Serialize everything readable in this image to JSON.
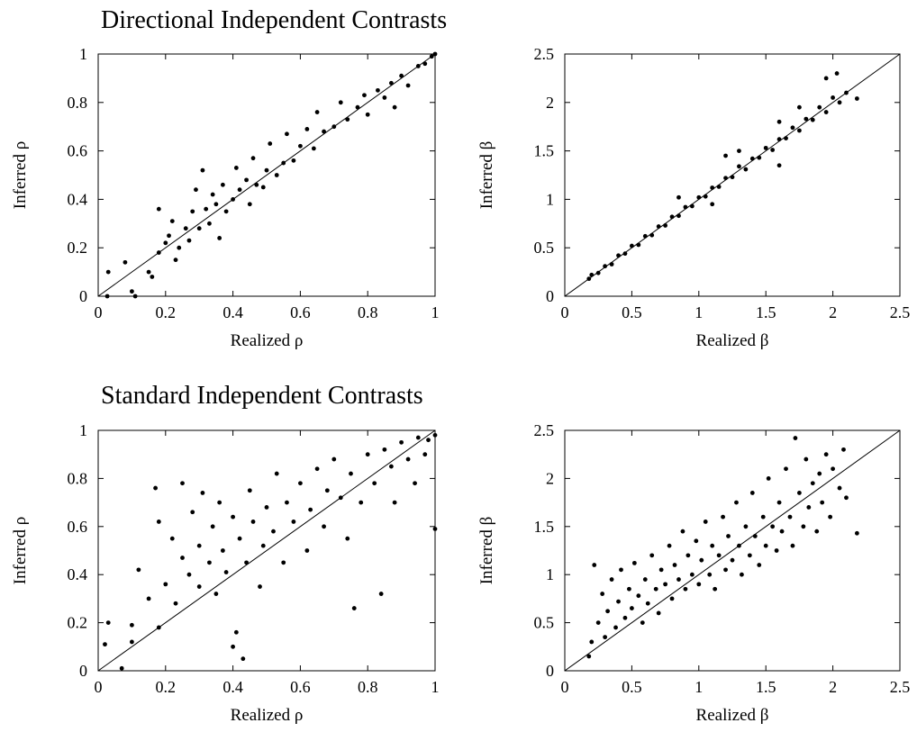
{
  "sections": [
    {
      "title": "Directional Independent Contrasts"
    },
    {
      "title": "Standard Independent Contrasts"
    }
  ],
  "chart_data": [
    {
      "type": "scatter",
      "section": "Directional Independent Contrasts",
      "title": "",
      "xlabel": "Realized ρ",
      "ylabel": "Inferred ρ",
      "xlim": [
        0,
        1
      ],
      "ylim": [
        0,
        1
      ],
      "xticks": [
        "0",
        "0.2",
        "0.4",
        "0.6",
        "0.8",
        "1"
      ],
      "yticks": [
        "0",
        "0.2",
        "0.4",
        "0.6",
        "0.8",
        "1"
      ],
      "reference_line": "y = x",
      "grid": false,
      "points": [
        [
          0.027,
          0.0
        ],
        [
          0.03,
          0.1
        ],
        [
          0.1,
          0.02
        ],
        [
          0.11,
          0.0
        ],
        [
          0.08,
          0.14
        ],
        [
          0.15,
          0.1
        ],
        [
          0.16,
          0.08
        ],
        [
          0.18,
          0.18
        ],
        [
          0.18,
          0.36
        ],
        [
          0.2,
          0.22
        ],
        [
          0.21,
          0.25
        ],
        [
          0.22,
          0.31
        ],
        [
          0.23,
          0.15
        ],
        [
          0.24,
          0.2
        ],
        [
          0.26,
          0.28
        ],
        [
          0.27,
          0.23
        ],
        [
          0.28,
          0.35
        ],
        [
          0.29,
          0.44
        ],
        [
          0.3,
          0.28
        ],
        [
          0.31,
          0.52
        ],
        [
          0.32,
          0.36
        ],
        [
          0.33,
          0.3
        ],
        [
          0.34,
          0.42
        ],
        [
          0.35,
          0.38
        ],
        [
          0.36,
          0.24
        ],
        [
          0.37,
          0.46
        ],
        [
          0.38,
          0.35
        ],
        [
          0.4,
          0.4
        ],
        [
          0.41,
          0.53
        ],
        [
          0.42,
          0.44
        ],
        [
          0.44,
          0.48
        ],
        [
          0.45,
          0.38
        ],
        [
          0.46,
          0.57
        ],
        [
          0.47,
          0.46
        ],
        [
          0.49,
          0.45
        ],
        [
          0.5,
          0.52
        ],
        [
          0.51,
          0.63
        ],
        [
          0.53,
          0.5
        ],
        [
          0.55,
          0.55
        ],
        [
          0.56,
          0.67
        ],
        [
          0.58,
          0.56
        ],
        [
          0.6,
          0.62
        ],
        [
          0.62,
          0.69
        ],
        [
          0.64,
          0.61
        ],
        [
          0.65,
          0.76
        ],
        [
          0.67,
          0.68
        ],
        [
          0.7,
          0.7
        ],
        [
          0.72,
          0.8
        ],
        [
          0.74,
          0.73
        ],
        [
          0.77,
          0.78
        ],
        [
          0.79,
          0.83
        ],
        [
          0.8,
          0.75
        ],
        [
          0.83,
          0.85
        ],
        [
          0.85,
          0.82
        ],
        [
          0.87,
          0.88
        ],
        [
          0.88,
          0.78
        ],
        [
          0.9,
          0.91
        ],
        [
          0.92,
          0.87
        ],
        [
          0.95,
          0.95
        ],
        [
          0.97,
          0.96
        ],
        [
          0.99,
          0.99
        ],
        [
          1.0,
          1.0
        ]
      ]
    },
    {
      "type": "scatter",
      "section": "Directional Independent Contrasts",
      "title": "",
      "xlabel": "Realized β",
      "ylabel": "Inferred β",
      "xlim": [
        0,
        2.5
      ],
      "ylim": [
        0,
        2.5
      ],
      "xticks": [
        "0",
        "0.5",
        "1",
        "1.5",
        "2",
        "2.5"
      ],
      "yticks": [
        "0",
        "0.5",
        "1",
        "1.5",
        "2",
        "2.5"
      ],
      "reference_line": "y = x",
      "grid": false,
      "points": [
        [
          0.18,
          0.18
        ],
        [
          0.2,
          0.22
        ],
        [
          0.25,
          0.24
        ],
        [
          0.3,
          0.31
        ],
        [
          0.35,
          0.33
        ],
        [
          0.4,
          0.42
        ],
        [
          0.45,
          0.44
        ],
        [
          0.5,
          0.52
        ],
        [
          0.55,
          0.53
        ],
        [
          0.6,
          0.62
        ],
        [
          0.65,
          0.63
        ],
        [
          0.7,
          0.72
        ],
        [
          0.75,
          0.73
        ],
        [
          0.8,
          0.82
        ],
        [
          0.85,
          0.83
        ],
        [
          0.9,
          0.92
        ],
        [
          0.95,
          0.93
        ],
        [
          1.0,
          1.02
        ],
        [
          1.05,
          1.03
        ],
        [
          1.1,
          1.12
        ],
        [
          1.15,
          1.13
        ],
        [
          1.2,
          1.22
        ],
        [
          1.25,
          1.23
        ],
        [
          1.3,
          1.34
        ],
        [
          1.35,
          1.31
        ],
        [
          1.4,
          1.42
        ],
        [
          1.45,
          1.43
        ],
        [
          1.5,
          1.53
        ],
        [
          1.55,
          1.51
        ],
        [
          1.6,
          1.62
        ],
        [
          1.65,
          1.63
        ],
        [
          1.7,
          1.74
        ],
        [
          1.75,
          1.71
        ],
        [
          1.8,
          1.83
        ],
        [
          1.85,
          1.82
        ],
        [
          1.9,
          1.95
        ],
        [
          1.95,
          1.9
        ],
        [
          2.0,
          2.05
        ],
        [
          2.05,
          2.0
        ],
        [
          2.1,
          2.1
        ],
        [
          2.18,
          2.04
        ],
        [
          1.95,
          2.25
        ],
        [
          2.03,
          2.3
        ],
        [
          1.2,
          1.45
        ],
        [
          1.1,
          0.95
        ],
        [
          1.3,
          1.5
        ],
        [
          1.6,
          1.35
        ],
        [
          0.85,
          1.02
        ],
        [
          1.75,
          1.95
        ],
        [
          1.6,
          1.8
        ]
      ]
    },
    {
      "type": "scatter",
      "section": "Standard Independent Contrasts",
      "title": "",
      "xlabel": "Realized ρ",
      "ylabel": "Inferred ρ",
      "xlim": [
        0,
        1
      ],
      "ylim": [
        0,
        1
      ],
      "xticks": [
        "0",
        "0.2",
        "0.4",
        "0.6",
        "0.8",
        "1"
      ],
      "yticks": [
        "0",
        "0.2",
        "0.4",
        "0.6",
        "0.8",
        "1"
      ],
      "reference_line": "y = x",
      "grid": false,
      "points": [
        [
          0.02,
          0.11
        ],
        [
          0.03,
          0.2
        ],
        [
          0.07,
          0.01
        ],
        [
          0.1,
          0.19
        ],
        [
          0.1,
          0.12
        ],
        [
          0.12,
          0.42
        ],
        [
          0.15,
          0.3
        ],
        [
          0.17,
          0.76
        ],
        [
          0.18,
          0.18
        ],
        [
          0.18,
          0.62
        ],
        [
          0.2,
          0.36
        ],
        [
          0.22,
          0.55
        ],
        [
          0.23,
          0.28
        ],
        [
          0.25,
          0.47
        ],
        [
          0.25,
          0.78
        ],
        [
          0.27,
          0.4
        ],
        [
          0.28,
          0.66
        ],
        [
          0.3,
          0.35
        ],
        [
          0.3,
          0.52
        ],
        [
          0.31,
          0.74
        ],
        [
          0.33,
          0.45
        ],
        [
          0.34,
          0.6
        ],
        [
          0.35,
          0.32
        ],
        [
          0.36,
          0.7
        ],
        [
          0.37,
          0.5
        ],
        [
          0.38,
          0.41
        ],
        [
          0.4,
          0.64
        ],
        [
          0.4,
          0.1
        ],
        [
          0.41,
          0.16
        ],
        [
          0.42,
          0.55
        ],
        [
          0.43,
          0.05
        ],
        [
          0.44,
          0.45
        ],
        [
          0.45,
          0.75
        ],
        [
          0.46,
          0.62
        ],
        [
          0.48,
          0.35
        ],
        [
          0.49,
          0.52
        ],
        [
          0.5,
          0.68
        ],
        [
          0.52,
          0.58
        ],
        [
          0.53,
          0.82
        ],
        [
          0.55,
          0.45
        ],
        [
          0.56,
          0.7
        ],
        [
          0.58,
          0.62
        ],
        [
          0.6,
          0.78
        ],
        [
          0.62,
          0.5
        ],
        [
          0.63,
          0.67
        ],
        [
          0.65,
          0.84
        ],
        [
          0.67,
          0.6
        ],
        [
          0.68,
          0.75
        ],
        [
          0.7,
          0.88
        ],
        [
          0.72,
          0.72
        ],
        [
          0.74,
          0.55
        ],
        [
          0.75,
          0.82
        ],
        [
          0.76,
          0.26
        ],
        [
          0.78,
          0.7
        ],
        [
          0.8,
          0.9
        ],
        [
          0.82,
          0.78
        ],
        [
          0.84,
          0.32
        ],
        [
          0.85,
          0.92
        ],
        [
          0.87,
          0.85
        ],
        [
          0.88,
          0.7
        ],
        [
          0.9,
          0.95
        ],
        [
          0.92,
          0.88
        ],
        [
          0.94,
          0.78
        ],
        [
          0.95,
          0.97
        ],
        [
          0.97,
          0.9
        ],
        [
          0.98,
          0.96
        ],
        [
          1.0,
          0.59
        ],
        [
          1.0,
          0.98
        ]
      ]
    },
    {
      "type": "scatter",
      "section": "Standard Independent Contrasts",
      "title": "",
      "xlabel": "Realized β",
      "ylabel": "Inferred β",
      "xlim": [
        0,
        2.5
      ],
      "ylim": [
        0,
        2.5
      ],
      "xticks": [
        "0",
        "0.5",
        "1",
        "1.5",
        "2",
        "2.5"
      ],
      "yticks": [
        "0",
        "0.5",
        "1",
        "1.5",
        "2",
        "2.5"
      ],
      "reference_line": "y = x",
      "grid": false,
      "points": [
        [
          0.18,
          0.15
        ],
        [
          0.2,
          0.3
        ],
        [
          0.22,
          1.1
        ],
        [
          0.25,
          0.5
        ],
        [
          0.28,
          0.8
        ],
        [
          0.3,
          0.35
        ],
        [
          0.32,
          0.62
        ],
        [
          0.35,
          0.95
        ],
        [
          0.38,
          0.45
        ],
        [
          0.4,
          0.72
        ],
        [
          0.42,
          1.05
        ],
        [
          0.45,
          0.55
        ],
        [
          0.48,
          0.85
        ],
        [
          0.5,
          0.65
        ],
        [
          0.52,
          1.12
        ],
        [
          0.55,
          0.78
        ],
        [
          0.58,
          0.5
        ],
        [
          0.6,
          0.95
        ],
        [
          0.62,
          0.7
        ],
        [
          0.65,
          1.2
        ],
        [
          0.68,
          0.85
        ],
        [
          0.7,
          0.6
        ],
        [
          0.72,
          1.05
        ],
        [
          0.75,
          0.9
        ],
        [
          0.78,
          1.3
        ],
        [
          0.8,
          0.75
        ],
        [
          0.82,
          1.1
        ],
        [
          0.85,
          0.95
        ],
        [
          0.88,
          1.45
        ],
        [
          0.9,
          0.85
        ],
        [
          0.92,
          1.2
        ],
        [
          0.95,
          1.0
        ],
        [
          0.98,
          1.35
        ],
        [
          1.0,
          0.9
        ],
        [
          1.02,
          1.15
        ],
        [
          1.05,
          1.55
        ],
        [
          1.08,
          1.0
        ],
        [
          1.1,
          1.3
        ],
        [
          1.12,
          0.85
        ],
        [
          1.15,
          1.2
        ],
        [
          1.18,
          1.6
        ],
        [
          1.2,
          1.05
        ],
        [
          1.22,
          1.4
        ],
        [
          1.25,
          1.15
        ],
        [
          1.28,
          1.75
        ],
        [
          1.3,
          1.3
        ],
        [
          1.32,
          1.0
        ],
        [
          1.35,
          1.5
        ],
        [
          1.38,
          1.2
        ],
        [
          1.4,
          1.85
        ],
        [
          1.42,
          1.4
        ],
        [
          1.45,
          1.1
        ],
        [
          1.48,
          1.6
        ],
        [
          1.5,
          1.3
        ],
        [
          1.52,
          2.0
        ],
        [
          1.55,
          1.5
        ],
        [
          1.58,
          1.25
        ],
        [
          1.6,
          1.75
        ],
        [
          1.62,
          1.45
        ],
        [
          1.65,
          2.1
        ],
        [
          1.68,
          1.6
        ],
        [
          1.7,
          1.3
        ],
        [
          1.72,
          2.42
        ],
        [
          1.75,
          1.85
        ],
        [
          1.78,
          1.5
        ],
        [
          1.8,
          2.2
        ],
        [
          1.82,
          1.7
        ],
        [
          1.85,
          1.95
        ],
        [
          1.88,
          1.45
        ],
        [
          1.9,
          2.05
        ],
        [
          1.92,
          1.75
        ],
        [
          1.95,
          2.25
        ],
        [
          1.98,
          1.6
        ],
        [
          2.0,
          2.1
        ],
        [
          2.05,
          1.9
        ],
        [
          2.08,
          2.3
        ],
        [
          2.1,
          1.8
        ],
        [
          2.18,
          1.43
        ]
      ]
    }
  ]
}
